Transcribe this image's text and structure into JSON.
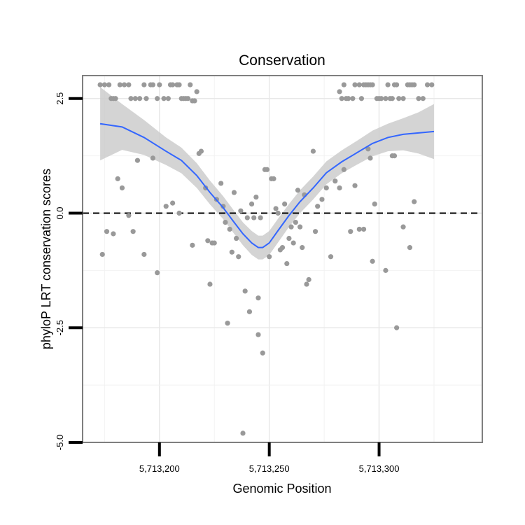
{
  "chart_data": {
    "type": "scatter",
    "title": "Conservation",
    "xlabel": "Genomic Position",
    "ylabel": "phyloP LRT conservation scores",
    "xlim": [
      5713165,
      5713347
    ],
    "ylim": [
      -5.0,
      3.0
    ],
    "xticks": [
      5713200,
      5713250,
      5713300
    ],
    "xtick_labels": [
      "5,713,200",
      "5,713,250",
      "5,713,300"
    ],
    "yticks": [
      -5.0,
      -2.5,
      0.0,
      2.5
    ],
    "ytick_labels": [
      "-5.0",
      "-2.5",
      "0.0",
      "2.5"
    ],
    "grid": true,
    "reference_line": {
      "y": 0.0,
      "style": "dashed"
    },
    "point_color": "#999999",
    "smooth_color": "#3366FF",
    "ribbon_color": "#cccccc",
    "points": [
      [
        5713173,
        2.8
      ],
      [
        5713175,
        2.8
      ],
      [
        5713177,
        2.8
      ],
      [
        5713178,
        2.5
      ],
      [
        5713179,
        2.5
      ],
      [
        5713180,
        2.5
      ],
      [
        5713182,
        2.8
      ],
      [
        5713184,
        2.8
      ],
      [
        5713186,
        2.8
      ],
      [
        5713187,
        2.5
      ],
      [
        5713189,
        2.5
      ],
      [
        5713191,
        2.5
      ],
      [
        5713193,
        2.8
      ],
      [
        5713194,
        2.5
      ],
      [
        5713196,
        2.8
      ],
      [
        5713197,
        2.8
      ],
      [
        5713199,
        2.5
      ],
      [
        5713200,
        2.8
      ],
      [
        5713202,
        2.5
      ],
      [
        5713204,
        2.5
      ],
      [
        5713205,
        2.8
      ],
      [
        5713206,
        2.8
      ],
      [
        5713208,
        2.8
      ],
      [
        5713209,
        2.8
      ],
      [
        5713210,
        2.5
      ],
      [
        5713211,
        2.5
      ],
      [
        5713212,
        2.5
      ],
      [
        5713213,
        2.5
      ],
      [
        5713214,
        2.8
      ],
      [
        5713215,
        2.45
      ],
      [
        5713216,
        2.45
      ],
      [
        5713217,
        2.65
      ],
      [
        5713282,
        2.65
      ],
      [
        5713283,
        2.5
      ],
      [
        5713284,
        2.8
      ],
      [
        5713285,
        2.5
      ],
      [
        5713286,
        2.5
      ],
      [
        5713288,
        2.5
      ],
      [
        5713289,
        2.8
      ],
      [
        5713291,
        2.8
      ],
      [
        5713292,
        2.5
      ],
      [
        5713293,
        2.8
      ],
      [
        5713294,
        2.8
      ],
      [
        5713295,
        2.8
      ],
      [
        5713296,
        2.8
      ],
      [
        5713297,
        2.8
      ],
      [
        5713299,
        2.5
      ],
      [
        5713300,
        2.5
      ],
      [
        5713301,
        2.5
      ],
      [
        5713303,
        2.5
      ],
      [
        5713304,
        2.8
      ],
      [
        5713305,
        2.5
      ],
      [
        5713306,
        2.5
      ],
      [
        5713307,
        2.8
      ],
      [
        5713308,
        2.8
      ],
      [
        5713309,
        2.5
      ],
      [
        5713311,
        2.5
      ],
      [
        5713313,
        2.8
      ],
      [
        5713314,
        2.8
      ],
      [
        5713315,
        2.8
      ],
      [
        5713316,
        2.8
      ],
      [
        5713318,
        2.5
      ],
      [
        5713320,
        2.5
      ],
      [
        5713322,
        2.8
      ],
      [
        5713324,
        2.8
      ],
      [
        5713174,
        -0.9
      ],
      [
        5713176,
        -0.4
      ],
      [
        5713179,
        -0.45
      ],
      [
        5713181,
        0.75
      ],
      [
        5713183,
        0.55
      ],
      [
        5713186,
        -0.05
      ],
      [
        5713188,
        -0.4
      ],
      [
        5713190,
        1.15
      ],
      [
        5713193,
        -0.9
      ],
      [
        5713197,
        1.2
      ],
      [
        5713199,
        -1.3
      ],
      [
        5713203,
        0.15
      ],
      [
        5713206,
        0.22
      ],
      [
        5713209,
        0.0
      ],
      [
        5713215,
        -0.7
      ],
      [
        5713218,
        1.3
      ],
      [
        5713219,
        1.35
      ],
      [
        5713221,
        0.55
      ],
      [
        5713222,
        -0.6
      ],
      [
        5713223,
        -1.55
      ],
      [
        5713224,
        -0.65
      ],
      [
        5713225,
        -0.65
      ],
      [
        5713226,
        0.3
      ],
      [
        5713228,
        0.65
      ],
      [
        5713229,
        0.15
      ],
      [
        5713230,
        -0.2
      ],
      [
        5713231,
        -2.4
      ],
      [
        5713232,
        -0.35
      ],
      [
        5713233,
        -0.85
      ],
      [
        5713234,
        0.45
      ],
      [
        5713235,
        -0.55
      ],
      [
        5713236,
        -0.95
      ],
      [
        5713237,
        0.05
      ],
      [
        5713238,
        -4.8
      ],
      [
        5713239,
        -1.7
      ],
      [
        5713240,
        -0.1
      ],
      [
        5713241,
        -2.15
      ],
      [
        5713242,
        0.2
      ],
      [
        5713243,
        -0.1
      ],
      [
        5713244,
        0.35
      ],
      [
        5713245,
        -1.85
      ],
      [
        5713245,
        -2.65
      ],
      [
        5713246,
        -0.1
      ],
      [
        5713247,
        -3.05
      ],
      [
        5713248,
        0.95
      ],
      [
        5713249,
        0.95
      ],
      [
        5713250,
        -0.95
      ],
      [
        5713251,
        0.75
      ],
      [
        5713252,
        0.75
      ],
      [
        5713253,
        0.1
      ],
      [
        5713254,
        0.0
      ],
      [
        5713255,
        -0.8
      ],
      [
        5713256,
        -0.75
      ],
      [
        5713257,
        0.2
      ],
      [
        5713258,
        -1.1
      ],
      [
        5713259,
        -0.55
      ],
      [
        5713260,
        -0.3
      ],
      [
        5713261,
        -0.65
      ],
      [
        5713262,
        -0.2
      ],
      [
        5713263,
        0.5
      ],
      [
        5713264,
        -0.3
      ],
      [
        5713265,
        -0.75
      ],
      [
        5713266,
        0.4
      ],
      [
        5713267,
        -1.55
      ],
      [
        5713268,
        -1.45
      ],
      [
        5713270,
        1.35
      ],
      [
        5713271,
        -0.4
      ],
      [
        5713272,
        0.15
      ],
      [
        5713274,
        0.3
      ],
      [
        5713276,
        0.55
      ],
      [
        5713278,
        -0.95
      ],
      [
        5713280,
        0.7
      ],
      [
        5713282,
        0.55
      ],
      [
        5713284,
        0.95
      ],
      [
        5713287,
        -0.4
      ],
      [
        5713289,
        0.6
      ],
      [
        5713291,
        -0.35
      ],
      [
        5713293,
        -0.35
      ],
      [
        5713295,
        1.4
      ],
      [
        5713296,
        1.2
      ],
      [
        5713297,
        -1.05
      ],
      [
        5713298,
        0.2
      ],
      [
        5713303,
        -1.25
      ],
      [
        5713306,
        1.25
      ],
      [
        5713307,
        1.25
      ],
      [
        5713308,
        -2.5
      ],
      [
        5713311,
        -0.3
      ],
      [
        5713314,
        -0.75
      ],
      [
        5713316,
        0.25
      ]
    ],
    "smooth": [
      [
        5713173,
        1.95
      ],
      [
        5713183,
        1.88
      ],
      [
        5713193,
        1.65
      ],
      [
        5713203,
        1.35
      ],
      [
        5713210,
        1.15
      ],
      [
        5713217,
        0.82
      ],
      [
        5713223,
        0.45
      ],
      [
        5713229,
        0.12
      ],
      [
        5713234,
        -0.2
      ],
      [
        5713238,
        -0.45
      ],
      [
        5713242,
        -0.65
      ],
      [
        5713245,
        -0.75
      ],
      [
        5713247,
        -0.75
      ],
      [
        5713250,
        -0.65
      ],
      [
        5713254,
        -0.38
      ],
      [
        5713259,
        -0.05
      ],
      [
        5713264,
        0.25
      ],
      [
        5713270,
        0.55
      ],
      [
        5713276,
        0.88
      ],
      [
        5713283,
        1.12
      ],
      [
        5713290,
        1.32
      ],
      [
        5713297,
        1.52
      ],
      [
        5713304,
        1.65
      ],
      [
        5713311,
        1.72
      ],
      [
        5713318,
        1.75
      ],
      [
        5713325,
        1.78
      ]
    ],
    "ribbon_halfwidth": [
      0.8,
      0.5,
      0.38,
      0.3,
      0.28,
      0.27,
      0.26,
      0.25,
      0.25,
      0.25,
      0.26,
      0.26,
      0.26,
      0.26,
      0.26,
      0.25,
      0.25,
      0.25,
      0.25,
      0.25,
      0.26,
      0.28,
      0.3,
      0.35,
      0.45,
      0.6
    ]
  }
}
